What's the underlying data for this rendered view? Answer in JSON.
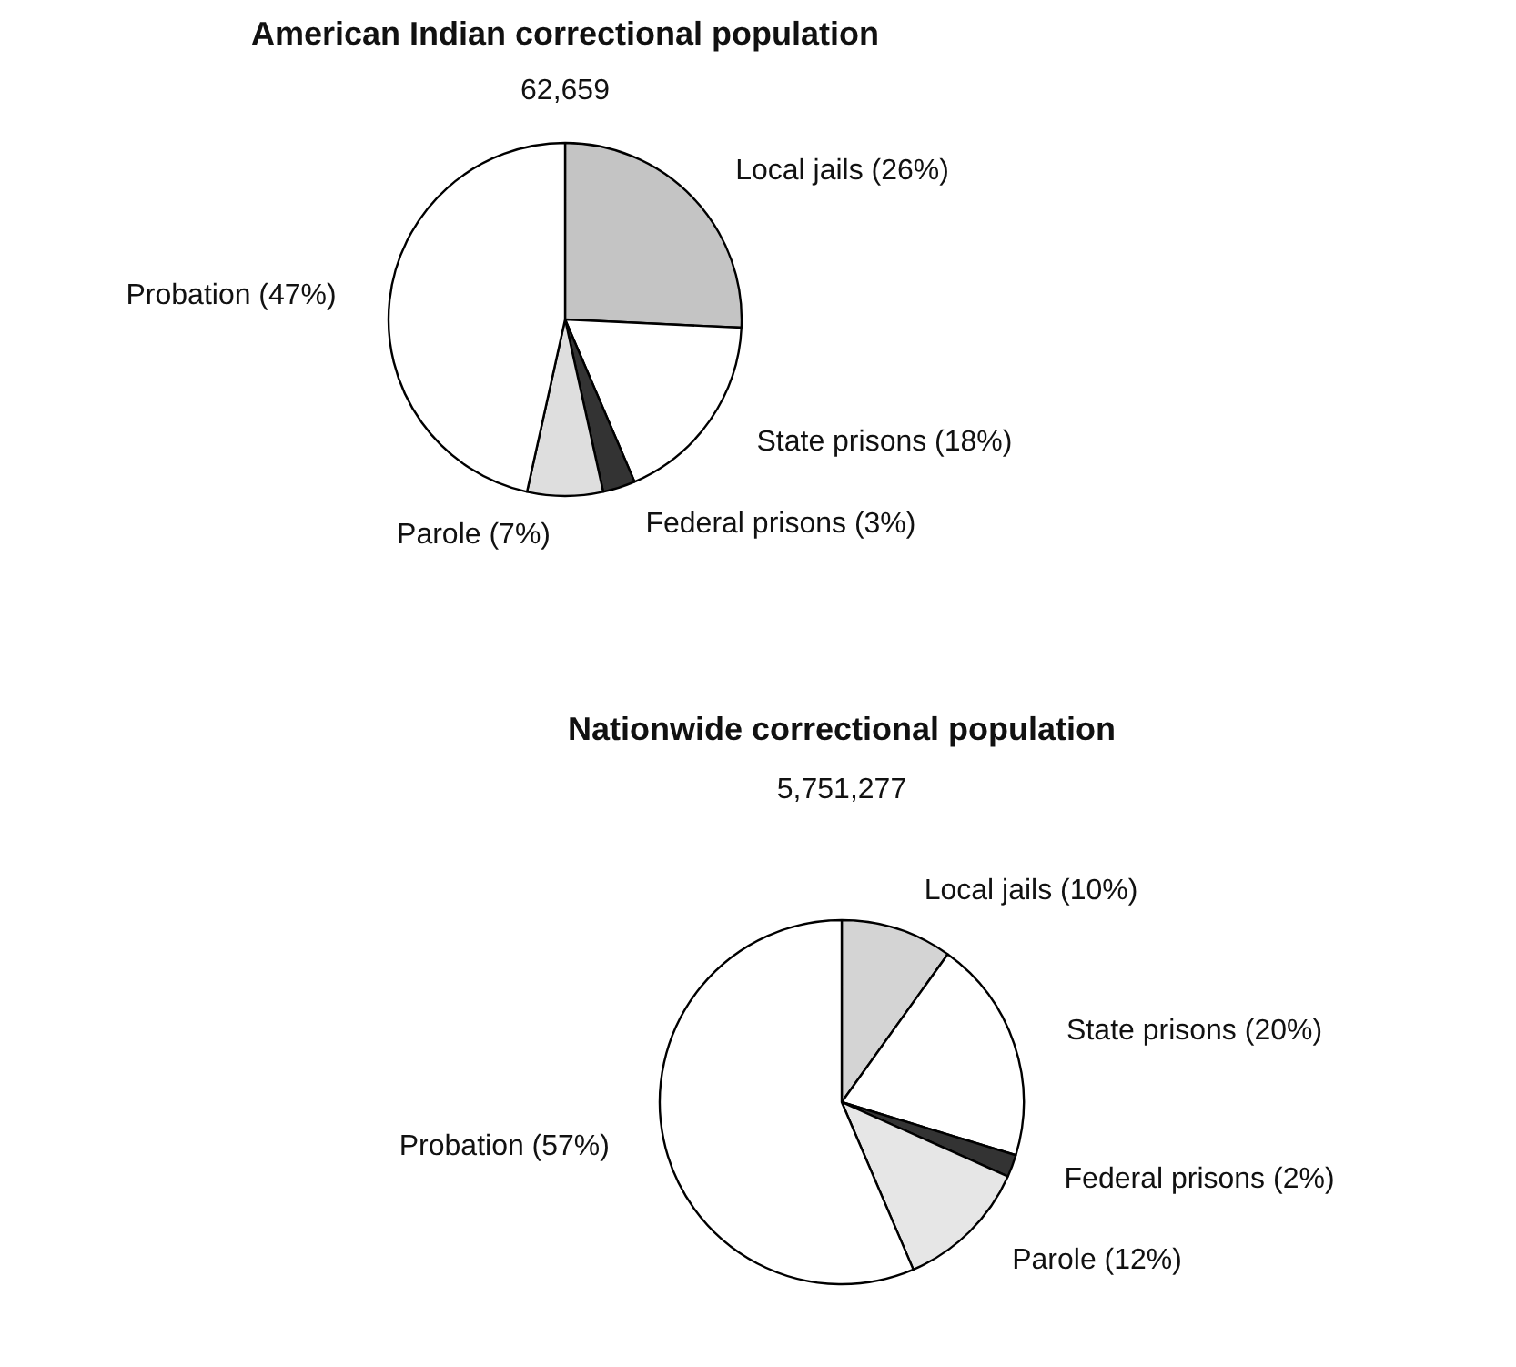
{
  "chart_data": [
    {
      "type": "pie",
      "title": "American Indian correctional population",
      "subtitle": "62,659",
      "categories": [
        "Local jails (26%)",
        "State prisons (18%)",
        "Federal prisons (3%)",
        "Parole (7%)",
        "Probation (47%)"
      ],
      "values": [
        26,
        18,
        3,
        7,
        47
      ],
      "colors": [
        "#c4c4c4",
        "#ffffff",
        "#333333",
        "#dedede",
        "#ffffff"
      ]
    },
    {
      "type": "pie",
      "title": "Nationwide correctional population",
      "subtitle": "5,751,277",
      "categories": [
        "Local jails (10%)",
        "State prisons (20%)",
        "Federal prisons (2%)",
        "Parole (12%)",
        "Probation (57%)"
      ],
      "values": [
        10,
        20,
        2,
        12,
        57
      ],
      "colors": [
        "#d4d4d4",
        "#ffffff",
        "#333333",
        "#e6e6e6",
        "#ffffff"
      ]
    }
  ]
}
